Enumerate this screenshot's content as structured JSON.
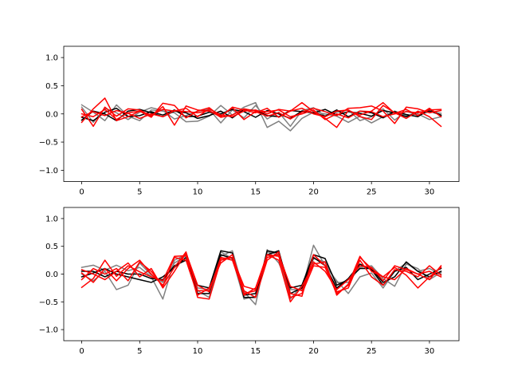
{
  "chart_data": [
    {
      "type": "line",
      "title": "",
      "xlabel": "",
      "ylabel": "",
      "xlim": [
        -1.55,
        32.55
      ],
      "ylim": [
        -1.2,
        1.2
      ],
      "xticks": [
        0,
        5,
        10,
        15,
        20,
        25,
        30
      ],
      "xtick_labels": [
        "0",
        "5",
        "10",
        "15",
        "20",
        "25",
        "30"
      ],
      "yticks": [
        -1.0,
        -0.5,
        0.0,
        0.5,
        1.0
      ],
      "ytick_labels": [
        "−1.0",
        "−0.5",
        "0.0",
        "0.5",
        "1.0"
      ],
      "grid": false,
      "x": [
        0,
        1,
        2,
        3,
        4,
        5,
        6,
        7,
        8,
        9,
        10,
        11,
        12,
        13,
        14,
        15,
        16,
        17,
        18,
        19,
        20,
        21,
        22,
        23,
        24,
        25,
        26,
        27,
        28,
        29,
        30,
        31
      ],
      "series": [
        {
          "color": "#808080",
          "values": [
            0.16,
            0.03,
            -0.12,
            0.16,
            -0.04,
            -0.12,
            0.07,
            0.05,
            0.02,
            -0.14,
            -0.13,
            -0.04,
            0.15,
            -0.02,
            0.12,
            0.2,
            -0.24,
            -0.13,
            -0.3,
            -0.08,
            0.03,
            0.0,
            -0.04,
            -0.15,
            -0.04,
            -0.16,
            -0.05,
            0.05,
            -0.03,
            0.0,
            -0.1,
            -0.05
          ]
        },
        {
          "color": "#808080",
          "values": [
            0.12,
            -0.15,
            0.1,
            0.02,
            -0.1,
            0.03,
            0.11,
            0.06,
            -0.09,
            -0.03,
            0.05,
            0.08,
            -0.16,
            0.07,
            -0.07,
            0.15,
            -0.09,
            0.03,
            -0.22,
            0.06,
            0.11,
            -0.04,
            0.03,
            0.07,
            -0.12,
            -0.05,
            0.09,
            -0.11,
            0.05,
            -0.03,
            0.04,
            0.01
          ]
        },
        {
          "color": "#000000",
          "values": [
            -0.11,
            0.05,
            0.0,
            -0.12,
            0.05,
            0.08,
            0.02,
            -0.05,
            0.05,
            0.02,
            -0.08,
            -0.03,
            0.05,
            -0.07,
            0.08,
            0.06,
            -0.03,
            -0.05,
            0.06,
            0.04,
            0.02,
            0.08,
            -0.02,
            0.04,
            0.01,
            -0.04,
            0.06,
            0.02,
            -0.05,
            0.03,
            0.05,
            -0.02
          ]
        },
        {
          "color": "#000000",
          "values": [
            -0.06,
            -0.12,
            0.03,
            0.1,
            -0.05,
            -0.03,
            0.04,
            -0.02,
            0.07,
            -0.05,
            -0.04,
            0.03,
            0.0,
            0.08,
            0.04,
            -0.06,
            0.06,
            0.0,
            -0.08,
            0.05,
            0.02,
            -0.04,
            0.07,
            -0.05,
            0.05,
            0.02,
            -0.07,
            0.04,
            -0.01,
            -0.05,
            0.08,
            -0.03
          ]
        },
        {
          "color": "#ff0000",
          "values": [
            -0.15,
            0.09,
            0.28,
            -0.12,
            -0.05,
            0.05,
            -0.06,
            0.19,
            0.15,
            -0.07,
            0.05,
            0.11,
            -0.05,
            0.12,
            0.07,
            0.02,
            0.1,
            -0.06,
            0.05,
            0.2,
            0.04,
            -0.08,
            -0.24,
            0.06,
            -0.02,
            0.05,
            0.2,
            0.01,
            0.08,
            -0.03,
            0.1,
            -0.05
          ]
        },
        {
          "color": "#ff0000",
          "values": [
            0.08,
            -0.22,
            0.12,
            -0.04,
            0.09,
            0.07,
            -0.04,
            0.13,
            -0.2,
            0.14,
            0.07,
            0.05,
            -0.04,
            0.11,
            -0.1,
            0.04,
            -0.04,
            0.02,
            -0.09,
            0.03,
            0.1,
            0.04,
            -0.03,
            0.1,
            0.11,
            0.14,
            0.05,
            -0.17,
            0.12,
            0.09,
            0.02,
            0.06
          ]
        },
        {
          "color": "#ff0000",
          "values": [
            0.0,
            -0.05,
            0.08,
            -0.1,
            0.02,
            0.05,
            -0.02,
            0.08,
            0.05,
            0.1,
            -0.05,
            0.09,
            -0.02,
            -0.05,
            0.05,
            0.07,
            0.0,
            0.08,
            0.05,
            0.1,
            0.0,
            -0.05,
            0.05,
            0.07,
            -0.05,
            -0.1,
            0.15,
            0.02,
            -0.08,
            0.05,
            -0.05,
            -0.22
          ]
        },
        {
          "color": "#ff0000",
          "values": [
            -0.05,
            0.04,
            -0.03,
            0.06,
            0.01,
            -0.08,
            0.0,
            -0.05,
            0.06,
            0.04,
            0.02,
            0.06,
            -0.06,
            -0.02,
            0.09,
            0.05,
            0.04,
            0.07,
            -0.05,
            0.0,
            0.07,
            -0.1,
            0.0,
            -0.07,
            0.05,
            0.04,
            -0.05,
            0.0,
            0.04,
            0.02,
            0.07,
            0.08
          ]
        }
      ]
    },
    {
      "type": "line",
      "title": "",
      "xlabel": "",
      "ylabel": "",
      "xlim": [
        -1.55,
        32.55
      ],
      "ylim": [
        -1.2,
        1.2
      ],
      "xticks": [
        0,
        5,
        10,
        15,
        20,
        25,
        30
      ],
      "xtick_labels": [
        "0",
        "5",
        "10",
        "15",
        "20",
        "25",
        "30"
      ],
      "yticks": [
        -1.0,
        -0.5,
        0.0,
        0.5,
        1.0
      ],
      "ytick_labels": [
        "−1.0",
        "−0.5",
        "0.0",
        "0.5",
        "1.0"
      ],
      "grid": false,
      "x": [
        0,
        1,
        2,
        3,
        4,
        5,
        6,
        7,
        8,
        9,
        10,
        11,
        12,
        13,
        14,
        15,
        16,
        17,
        18,
        19,
        20,
        21,
        22,
        23,
        24,
        25,
        26,
        27,
        28,
        29,
        30,
        31
      ],
      "series": [
        {
          "color": "#808080",
          "values": [
            0.12,
            0.16,
            0.07,
            0.16,
            0.06,
            0.12,
            -0.05,
            -0.45,
            0.25,
            0.35,
            -0.3,
            -0.42,
            0.32,
            0.42,
            -0.32,
            -0.55,
            0.44,
            0.2,
            -0.28,
            -0.28,
            0.52,
            0.15,
            -0.12,
            -0.35,
            -0.05,
            0.02,
            -0.25,
            0.05,
            0.2,
            0.05,
            0.1,
            0.0
          ]
        },
        {
          "color": "#808080",
          "values": [
            0.0,
            -0.12,
            0.05,
            -0.28,
            -0.2,
            0.2,
            -0.02,
            -0.15,
            0.2,
            0.33,
            -0.25,
            -0.28,
            0.4,
            0.28,
            -0.45,
            -0.4,
            0.4,
            0.35,
            -0.45,
            -0.2,
            0.28,
            0.22,
            -0.15,
            -0.15,
            0.12,
            0.15,
            -0.08,
            -0.22,
            0.18,
            0.1,
            -0.1,
            0.03
          ]
        },
        {
          "color": "#000000",
          "values": [
            0.05,
            0.05,
            -0.05,
            0.05,
            0.0,
            0.0,
            -0.08,
            -0.1,
            0.15,
            0.25,
            -0.2,
            -0.25,
            0.42,
            0.38,
            -0.42,
            -0.42,
            0.42,
            0.38,
            -0.25,
            -0.2,
            0.35,
            0.28,
            -0.2,
            -0.1,
            0.1,
            0.1,
            -0.15,
            -0.05,
            0.22,
            0.05,
            -0.05,
            0.05
          ]
        },
        {
          "color": "#000000",
          "values": [
            -0.05,
            0.02,
            0.1,
            0.0,
            -0.05,
            -0.1,
            -0.15,
            -0.05,
            0.12,
            0.3,
            -0.35,
            -0.35,
            0.35,
            0.28,
            -0.38,
            -0.35,
            0.35,
            0.42,
            -0.35,
            -0.25,
            0.3,
            0.15,
            -0.25,
            -0.08,
            0.18,
            0.08,
            -0.2,
            0.05,
            0.12,
            -0.1,
            0.0,
            0.1
          ]
        },
        {
          "color": "#ff0000",
          "values": [
            -0.24,
            -0.08,
            0.25,
            -0.04,
            0.15,
            0.04,
            -0.05,
            -0.12,
            0.32,
            0.33,
            -0.42,
            -0.45,
            0.25,
            0.3,
            -0.38,
            -0.25,
            0.35,
            0.25,
            -0.5,
            -0.22,
            0.18,
            0.22,
            -0.38,
            -0.18,
            0.32,
            0.05,
            -0.05,
            0.12,
            -0.02,
            -0.25,
            -0.05,
            0.12
          ]
        },
        {
          "color": "#ff0000",
          "values": [
            0.02,
            -0.15,
            0.1,
            -0.12,
            0.1,
            0.25,
            0.0,
            -0.2,
            0.12,
            0.4,
            -0.3,
            -0.3,
            0.28,
            0.3,
            -0.22,
            -0.28,
            0.35,
            0.32,
            -0.35,
            -0.4,
            0.35,
            0.15,
            -0.32,
            -0.25,
            0.25,
            -0.05,
            -0.2,
            0.08,
            0.05,
            -0.05,
            0.15,
            -0.02
          ]
        },
        {
          "color": "#ff0000",
          "values": [
            -0.1,
            0.1,
            0.0,
            0.1,
            -0.12,
            0.22,
            0.05,
            -0.22,
            0.3,
            0.25,
            -0.38,
            -0.25,
            0.2,
            0.35,
            -0.3,
            -0.42,
            0.25,
            0.4,
            -0.42,
            -0.35,
            0.15,
            0.12,
            -0.35,
            -0.2,
            0.3,
            0.1,
            -0.05,
            -0.1,
            0.1,
            0.0,
            -0.1,
            0.15
          ]
        },
        {
          "color": "#ff0000",
          "values": [
            0.08,
            0.0,
            -0.1,
            0.05,
            0.2,
            -0.05,
            0.1,
            -0.25,
            0.05,
            0.38,
            -0.2,
            -0.32,
            0.3,
            0.25,
            -0.35,
            -0.3,
            0.3,
            0.35,
            -0.22,
            -0.3,
            0.22,
            0.05,
            -0.28,
            -0.1,
            0.15,
            0.12,
            -0.12,
            0.15,
            0.08,
            0.0,
            0.05,
            -0.05
          ]
        }
      ]
    }
  ]
}
